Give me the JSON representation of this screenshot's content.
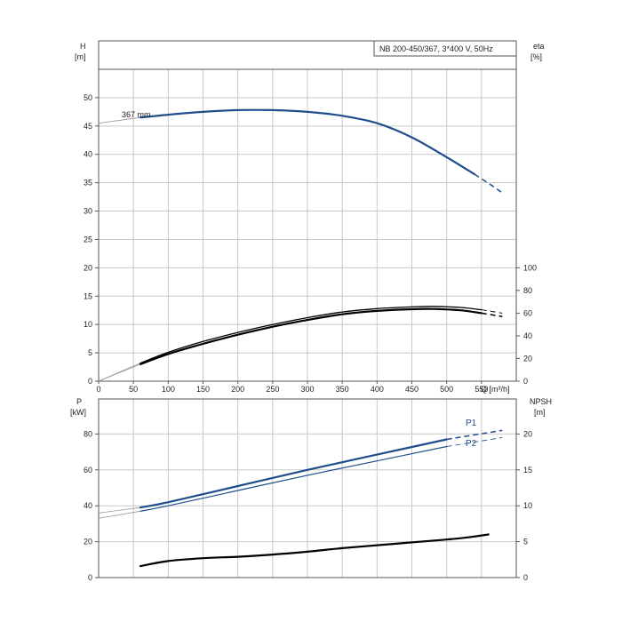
{
  "colors": {
    "blue": "#1f4e8c",
    "black": "#000000",
    "grid": "#c8c8c8",
    "thin": "#999999"
  },
  "chart_data": [
    {
      "type": "line",
      "panel": "top",
      "title": "NB 200-450/367, 3*400 V, 50Hz",
      "xlabel": "Q [m³/h]",
      "left_axis_label": [
        "H",
        "[m]"
      ],
      "right_axis_label": [
        "eta",
        "[%]"
      ],
      "xlim": [
        0,
        600
      ],
      "ylim": [
        0,
        55
      ],
      "right_ylim": [
        0,
        100
      ],
      "x_ticks": [
        0,
        50,
        100,
        150,
        200,
        250,
        300,
        350,
        400,
        450,
        500,
        550
      ],
      "y_ticks": [
        0,
        5,
        10,
        15,
        20,
        25,
        30,
        35,
        40,
        45,
        50
      ],
      "right_ticks": [
        0,
        20,
        40,
        60,
        80,
        100
      ],
      "grid": true,
      "annotation": "367 mm",
      "series": [
        {
          "axis": "left",
          "color": "#1f4e8c",
          "x": [
            0,
            60,
            100,
            150,
            200,
            250,
            300,
            350,
            400,
            450,
            500,
            540,
            565,
            580
          ],
          "y": [
            45.5,
            46.5,
            47.0,
            47.5,
            47.8,
            47.8,
            47.5,
            46.8,
            45.5,
            43.0,
            39.5,
            36.5,
            34.5,
            33.2
          ]
        },
        {
          "axis": "right",
          "color": "#000000",
          "x": [
            0,
            60,
            100,
            150,
            200,
            250,
            300,
            350,
            400,
            450,
            480,
            520,
            550,
            565,
            580
          ],
          "y": [
            0,
            15,
            24,
            33,
            41,
            48,
            54,
            59,
            62,
            63.5,
            63.7,
            62.5,
            60,
            58.5,
            57
          ]
        },
        {
          "axis": "right",
          "color": "#000000",
          "x": [
            0,
            60,
            100,
            150,
            200,
            250,
            300,
            350,
            400,
            450,
            480,
            520,
            550,
            565,
            580
          ],
          "y": [
            0,
            16,
            25.5,
            35,
            43,
            50,
            56,
            61,
            64,
            65.5,
            66,
            65,
            63,
            61.5,
            60
          ]
        }
      ]
    },
    {
      "type": "line",
      "panel": "bottom",
      "left_axis_label": [
        "P",
        "[kW]"
      ],
      "right_axis_label": [
        "NPSH",
        "[m]"
      ],
      "xlim": [
        0,
        600
      ],
      "ylim": [
        0,
        100
      ],
      "right_ylim": [
        0,
        25
      ],
      "y_ticks": [
        0,
        20,
        40,
        60,
        80
      ],
      "right_ticks": [
        0,
        5,
        10,
        15,
        20
      ],
      "grid": true,
      "series": [
        {
          "name": "P1",
          "axis": "left",
          "color": "#1f4e8c",
          "x": [
            0,
            60,
            100,
            200,
            300,
            400,
            500,
            580
          ],
          "y": [
            36,
            39,
            42,
            51,
            60,
            68.5,
            77,
            82
          ]
        },
        {
          "name": "P2",
          "axis": "left",
          "color": "#1f4e8c",
          "x": [
            0,
            60,
            100,
            200,
            300,
            400,
            500,
            580
          ],
          "y": [
            33,
            37,
            40,
            48.5,
            57,
            65,
            73,
            78
          ]
        },
        {
          "axis": "right",
          "color": "#000000",
          "x": [
            60,
            100,
            150,
            200,
            250,
            300,
            350,
            400,
            450,
            500,
            530,
            560
          ],
          "y": [
            1.6,
            2.3,
            2.7,
            2.9,
            3.2,
            3.6,
            4.1,
            4.5,
            4.9,
            5.3,
            5.6,
            6.0
          ]
        }
      ]
    }
  ]
}
